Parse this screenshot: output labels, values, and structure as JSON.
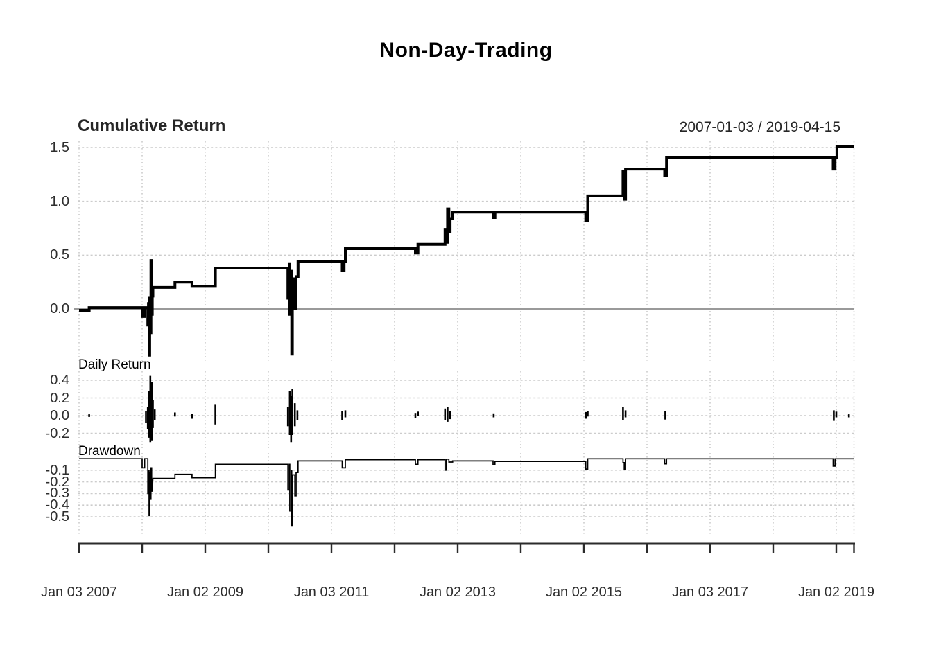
{
  "title": "Non-Day-Trading",
  "header": {
    "panel_title": "Cumulative Return",
    "date_range": "2007-01-03 / 2019-04-15"
  },
  "panel_labels": {
    "daily": "Daily Return",
    "drawdown": "Drawdown"
  },
  "axes": {
    "cumulative_yticks": [
      {
        "label": "1.5",
        "value": 1.5
      },
      {
        "label": "1.0",
        "value": 1.0
      },
      {
        "label": "0.5",
        "value": 0.5
      },
      {
        "label": "0.0",
        "value": 0.0
      }
    ],
    "daily_yticks": [
      {
        "label": "0.4",
        "value": 0.4
      },
      {
        "label": "0.2",
        "value": 0.2
      },
      {
        "label": "0.0",
        "value": 0.0
      },
      {
        "label": "-0.2",
        "value": -0.2
      }
    ],
    "drawdown_yticks": [
      {
        "label": "-0.1",
        "value": -0.1
      },
      {
        "label": "-0.2",
        "value": -0.2
      },
      {
        "label": "-0.3",
        "value": -0.3
      },
      {
        "label": "-0.4",
        "value": -0.4
      },
      {
        "label": "-0.5",
        "value": -0.5
      }
    ],
    "x_tick_years": [
      2007,
      2008,
      2009,
      2010,
      2011,
      2012,
      2013,
      2014,
      2015,
      2016,
      2017,
      2018,
      2019
    ],
    "x_end_year": 2019.28,
    "x_labels": [
      {
        "label": "Jan 03 2007",
        "year": 2007
      },
      {
        "label": "Jan 02 2009",
        "year": 2009
      },
      {
        "label": "Jan 03 2011",
        "year": 2011
      },
      {
        "label": "Jan 02 2013",
        "year": 2013
      },
      {
        "label": "Jan 02 2015",
        "year": 2015
      },
      {
        "label": "Jan 03 2017",
        "year": 2017
      },
      {
        "label": "Jan 02 2019",
        "year": 2019
      }
    ]
  },
  "colors": {
    "line": "#000000",
    "grid": "#cccccc",
    "zero_line": "#9a9a9a",
    "axis": "#2b2b2b",
    "text": "#2e2e2e"
  },
  "chart_data": [
    {
      "type": "line",
      "name": "Cumulative Return",
      "title": "Non-Day-Trading",
      "x_unit": "decimal_year",
      "x_range": [
        2007.0,
        2019.28
      ],
      "ylim": [
        -0.45,
        1.55
      ],
      "grid": true,
      "points": [
        [
          2007.0,
          -0.013
        ],
        [
          2007.16,
          -0.013
        ],
        [
          2007.16,
          0.012
        ],
        [
          2008.0,
          0.012
        ],
        [
          2008.0,
          -0.07
        ],
        [
          2008.04,
          -0.07
        ],
        [
          2008.04,
          0.012
        ],
        [
          2008.09,
          0.012
        ],
        [
          2008.09,
          -0.15
        ],
        [
          2008.1,
          -0.15
        ],
        [
          2008.1,
          0.05
        ],
        [
          2008.11,
          0.05
        ],
        [
          2008.11,
          -0.43
        ],
        [
          2008.12,
          -0.43
        ],
        [
          2008.12,
          0.1
        ],
        [
          2008.13,
          0.1
        ],
        [
          2008.13,
          -0.22
        ],
        [
          2008.14,
          -0.22
        ],
        [
          2008.14,
          0.45
        ],
        [
          2008.15,
          0.45
        ],
        [
          2008.15,
          -0.05
        ],
        [
          2008.16,
          -0.05
        ],
        [
          2008.16,
          0.12
        ],
        [
          2008.17,
          0.12
        ],
        [
          2008.17,
          0.2
        ],
        [
          2008.52,
          0.2
        ],
        [
          2008.52,
          0.25
        ],
        [
          2008.79,
          0.25
        ],
        [
          2008.79,
          0.21
        ],
        [
          2009.16,
          0.21
        ],
        [
          2009.16,
          0.38
        ],
        [
          2010.31,
          0.38
        ],
        [
          2010.31,
          0.1
        ],
        [
          2010.33,
          0.1
        ],
        [
          2010.33,
          0.42
        ],
        [
          2010.34,
          0.42
        ],
        [
          2010.34,
          -0.05
        ],
        [
          2010.36,
          -0.05
        ],
        [
          2010.36,
          0.35
        ],
        [
          2010.37,
          0.35
        ],
        [
          2010.37,
          -0.42
        ],
        [
          2010.38,
          -0.42
        ],
        [
          2010.38,
          0.28
        ],
        [
          2010.42,
          0.28
        ],
        [
          2010.42,
          0.0
        ],
        [
          2010.44,
          0.0
        ],
        [
          2010.44,
          0.3
        ],
        [
          2010.47,
          0.3
        ],
        [
          2010.47,
          0.44
        ],
        [
          2011.17,
          0.44
        ],
        [
          2011.17,
          0.36
        ],
        [
          2011.2,
          0.36
        ],
        [
          2011.2,
          0.44
        ],
        [
          2011.22,
          0.44
        ],
        [
          2011.22,
          0.56
        ],
        [
          2012.33,
          0.56
        ],
        [
          2012.33,
          0.52
        ],
        [
          2012.37,
          0.52
        ],
        [
          2012.37,
          0.6
        ],
        [
          2012.8,
          0.6
        ],
        [
          2012.8,
          0.74
        ],
        [
          2012.82,
          0.74
        ],
        [
          2012.82,
          0.62
        ],
        [
          2012.84,
          0.62
        ],
        [
          2012.84,
          0.93
        ],
        [
          2012.86,
          0.93
        ],
        [
          2012.86,
          0.72
        ],
        [
          2012.88,
          0.72
        ],
        [
          2012.88,
          0.84
        ],
        [
          2012.92,
          0.84
        ],
        [
          2012.92,
          0.9
        ],
        [
          2013.56,
          0.9
        ],
        [
          2013.56,
          0.85
        ],
        [
          2013.59,
          0.85
        ],
        [
          2013.59,
          0.9
        ],
        [
          2015.03,
          0.9
        ],
        [
          2015.03,
          0.82
        ],
        [
          2015.06,
          0.82
        ],
        [
          2015.06,
          1.05
        ],
        [
          2015.62,
          1.05
        ],
        [
          2015.62,
          1.28
        ],
        [
          2015.64,
          1.28
        ],
        [
          2015.64,
          1.02
        ],
        [
          2015.66,
          1.02
        ],
        [
          2015.66,
          1.3
        ],
        [
          2016.28,
          1.3
        ],
        [
          2016.28,
          1.24
        ],
        [
          2016.31,
          1.24
        ],
        [
          2016.31,
          1.41
        ],
        [
          2018.95,
          1.41
        ],
        [
          2018.95,
          1.3
        ],
        [
          2018.98,
          1.3
        ],
        [
          2018.98,
          1.41
        ],
        [
          2019.01,
          1.41
        ],
        [
          2019.01,
          1.51
        ],
        [
          2019.28,
          1.51
        ]
      ]
    },
    {
      "type": "line",
      "name": "Daily Return",
      "x_unit": "decimal_year",
      "x_range": [
        2007.0,
        2019.28
      ],
      "ylim": [
        -0.3,
        0.5
      ],
      "grid": true,
      "spikes": [
        [
          2007.16,
          0.015,
          -0.015
        ],
        [
          2008.06,
          0.05,
          -0.08
        ],
        [
          2008.09,
          0.1,
          -0.15
        ],
        [
          2008.11,
          0.28,
          -0.25
        ],
        [
          2008.13,
          0.45,
          -0.3
        ],
        [
          2008.15,
          0.38,
          -0.28
        ],
        [
          2008.17,
          0.18,
          -0.14
        ],
        [
          2008.2,
          0.07,
          -0.05
        ],
        [
          2008.52,
          0.035,
          -0.01
        ],
        [
          2008.79,
          0.02,
          -0.035
        ],
        [
          2009.16,
          0.13,
          -0.1
        ],
        [
          2010.31,
          0.1,
          -0.12
        ],
        [
          2010.34,
          0.28,
          -0.22
        ],
        [
          2010.36,
          0.22,
          -0.3
        ],
        [
          2010.38,
          0.3,
          -0.22
        ],
        [
          2010.42,
          0.14,
          -0.12
        ],
        [
          2010.46,
          0.06,
          -0.05
        ],
        [
          2011.17,
          0.05,
          -0.05
        ],
        [
          2011.22,
          0.06,
          -0.02
        ],
        [
          2012.33,
          0.03,
          -0.03
        ],
        [
          2012.37,
          0.045,
          -0.005
        ],
        [
          2012.8,
          0.08,
          -0.05
        ],
        [
          2012.84,
          0.1,
          -0.07
        ],
        [
          2012.88,
          0.05,
          -0.04
        ],
        [
          2013.57,
          0.025,
          -0.02
        ],
        [
          2015.03,
          0.04,
          -0.035
        ],
        [
          2015.06,
          0.05,
          -0.01
        ],
        [
          2015.62,
          0.1,
          -0.05
        ],
        [
          2015.66,
          0.06,
          -0.02
        ],
        [
          2016.29,
          0.05,
          -0.045
        ],
        [
          2018.96,
          0.06,
          -0.06
        ],
        [
          2019.0,
          0.045,
          -0.02
        ],
        [
          2019.2,
          0.015,
          -0.02
        ]
      ]
    },
    {
      "type": "line",
      "name": "Drawdown",
      "x_unit": "decimal_year",
      "x_range": [
        2007.0,
        2019.28
      ],
      "ylim": [
        -0.6,
        0.0
      ],
      "grid": true,
      "points": [
        [
          2007.0,
          -0.001
        ],
        [
          2008.0,
          -0.001
        ],
        [
          2008.0,
          -0.08
        ],
        [
          2008.04,
          -0.08
        ],
        [
          2008.04,
          -0.001
        ],
        [
          2008.09,
          -0.001
        ],
        [
          2008.09,
          -0.3
        ],
        [
          2008.1,
          -0.3
        ],
        [
          2008.1,
          -0.1
        ],
        [
          2008.11,
          -0.1
        ],
        [
          2008.11,
          -0.49
        ],
        [
          2008.12,
          -0.49
        ],
        [
          2008.12,
          -0.12
        ],
        [
          2008.13,
          -0.12
        ],
        [
          2008.13,
          -0.35
        ],
        [
          2008.14,
          -0.35
        ],
        [
          2008.14,
          -0.08
        ],
        [
          2008.15,
          -0.08
        ],
        [
          2008.15,
          -0.28
        ],
        [
          2008.16,
          -0.28
        ],
        [
          2008.17,
          -0.17
        ],
        [
          2008.52,
          -0.17
        ],
        [
          2008.52,
          -0.135
        ],
        [
          2008.79,
          -0.135
        ],
        [
          2008.79,
          -0.165
        ],
        [
          2009.16,
          -0.165
        ],
        [
          2009.16,
          -0.05
        ],
        [
          2010.31,
          -0.05
        ],
        [
          2010.31,
          -0.27
        ],
        [
          2010.33,
          -0.27
        ],
        [
          2010.33,
          -0.05
        ],
        [
          2010.34,
          -0.05
        ],
        [
          2010.34,
          -0.45
        ],
        [
          2010.36,
          -0.45
        ],
        [
          2010.36,
          -0.1
        ],
        [
          2010.37,
          -0.1
        ],
        [
          2010.37,
          -0.58
        ],
        [
          2010.38,
          -0.58
        ],
        [
          2010.38,
          -0.14
        ],
        [
          2010.42,
          -0.14
        ],
        [
          2010.42,
          -0.32
        ],
        [
          2010.44,
          -0.32
        ],
        [
          2010.44,
          -0.12
        ],
        [
          2010.47,
          -0.12
        ],
        [
          2010.47,
          -0.02
        ],
        [
          2011.17,
          -0.02
        ],
        [
          2011.17,
          -0.08
        ],
        [
          2011.22,
          -0.08
        ],
        [
          2011.22,
          -0.01
        ],
        [
          2012.33,
          -0.01
        ],
        [
          2012.33,
          -0.05
        ],
        [
          2012.37,
          -0.05
        ],
        [
          2012.37,
          -0.01
        ],
        [
          2012.8,
          -0.01
        ],
        [
          2012.8,
          -0.1
        ],
        [
          2012.82,
          -0.1
        ],
        [
          2012.82,
          -0.005
        ],
        [
          2012.86,
          -0.005
        ],
        [
          2012.86,
          -0.03
        ],
        [
          2012.92,
          -0.03
        ],
        [
          2012.92,
          -0.02
        ],
        [
          2013.56,
          -0.02
        ],
        [
          2013.56,
          -0.055
        ],
        [
          2013.59,
          -0.055
        ],
        [
          2013.59,
          -0.025
        ],
        [
          2015.03,
          -0.025
        ],
        [
          2015.03,
          -0.09
        ],
        [
          2015.06,
          -0.09
        ],
        [
          2015.06,
          -0.002
        ],
        [
          2015.62,
          -0.002
        ],
        [
          2015.62,
          -0.035
        ],
        [
          2015.64,
          -0.035
        ],
        [
          2015.64,
          -0.09
        ],
        [
          2015.66,
          -0.09
        ],
        [
          2015.66,
          -0.002
        ],
        [
          2016.28,
          -0.002
        ],
        [
          2016.28,
          -0.045
        ],
        [
          2016.31,
          -0.045
        ],
        [
          2016.31,
          -0.002
        ],
        [
          2018.95,
          -0.002
        ],
        [
          2018.95,
          -0.065
        ],
        [
          2018.98,
          -0.065
        ],
        [
          2018.98,
          -0.002
        ],
        [
          2019.28,
          -0.002
        ]
      ]
    }
  ]
}
